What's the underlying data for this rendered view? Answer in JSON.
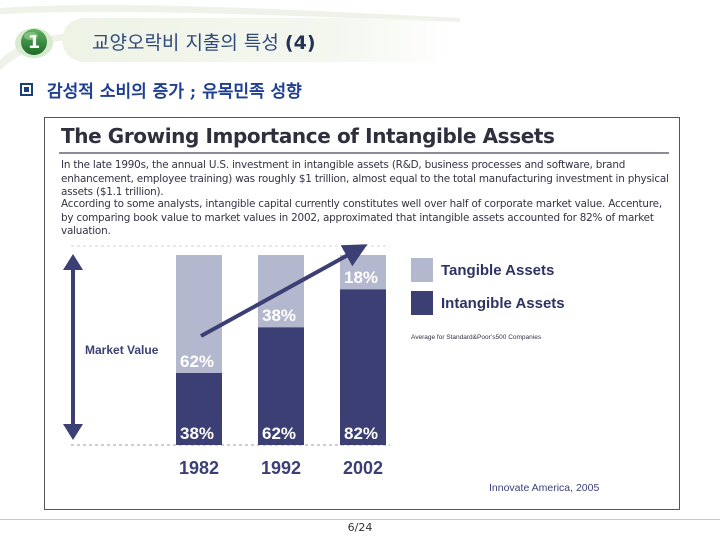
{
  "slide": {
    "badge_number": "1",
    "title_text": "교양오락비 지출의 특성 ",
    "title_suffix": "(4)",
    "bullet_text": "감성적 소비의 증가 ; 유목민족 성향",
    "page_number": "6/24",
    "colors": {
      "title": "#2f4a7a",
      "bullet": "#1f3f93",
      "badge": "#1c6b2a"
    }
  },
  "figure": {
    "title": "The Growing Importance of Intangible Assets",
    "paragraph_1": "In the late 1990s, the annual U.S. investment in intangible assets (R&D, business processes and software, brand enhancement, employee training) was roughly $1 trillion, almost equal to the total manufacturing investment in physical assets ($1.1 trillion).",
    "paragraph_2": "According to some analysts, intangible capital currently constitutes well over half of corporate market value. Accenture, by comparing book value to market values in 2002, approximated that intangible assets accounted for 82% of market valuation.",
    "market_value_label": "Market Value",
    "legend_note": "Average for Standard&Poor’s500 Companies",
    "credit": "Innovate America, 2005"
  },
  "chart_data": {
    "type": "bar",
    "stacked": true,
    "categories": [
      "1982",
      "1992",
      "2002"
    ],
    "series": [
      {
        "name": "Intangible Assets",
        "values": [
          38,
          62,
          82
        ],
        "labels": [
          "38%",
          "62%",
          "82%"
        ],
        "color": "#3b3f74"
      },
      {
        "name": "Tangible Assets",
        "values": [
          62,
          38,
          18
        ],
        "labels": [
          "62%",
          "38%",
          "18%"
        ],
        "color": "#b4b8cf"
      }
    ],
    "ylim": [
      0,
      100
    ],
    "legend_position": "right",
    "trend_arrow": true
  }
}
